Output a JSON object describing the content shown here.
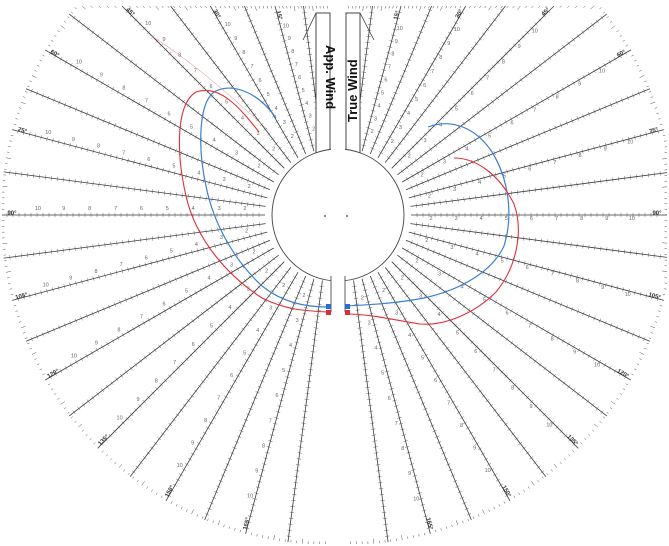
{
  "panels": {
    "left_label": "App. Wind",
    "right_label": "True Wind"
  },
  "rim_angles": {
    "right": [
      "15°",
      "30°",
      "45°",
      "60°",
      "75°",
      "90°",
      "105°",
      "120°",
      "135°",
      "150°",
      "165°"
    ],
    "left": [
      "15°",
      "30°",
      "45°",
      "60°",
      "75°",
      "90°",
      "105°",
      "120°",
      "135°",
      "150°",
      "165°"
    ]
  },
  "speed_scale": [
    "2",
    "3",
    "4",
    "5",
    "6",
    "7",
    "8",
    "9",
    "10"
  ],
  "colors": {
    "apparent_curve": "#3d7fd0",
    "true_curve": "#e0303a",
    "grid": "#3a3a3a"
  }
}
